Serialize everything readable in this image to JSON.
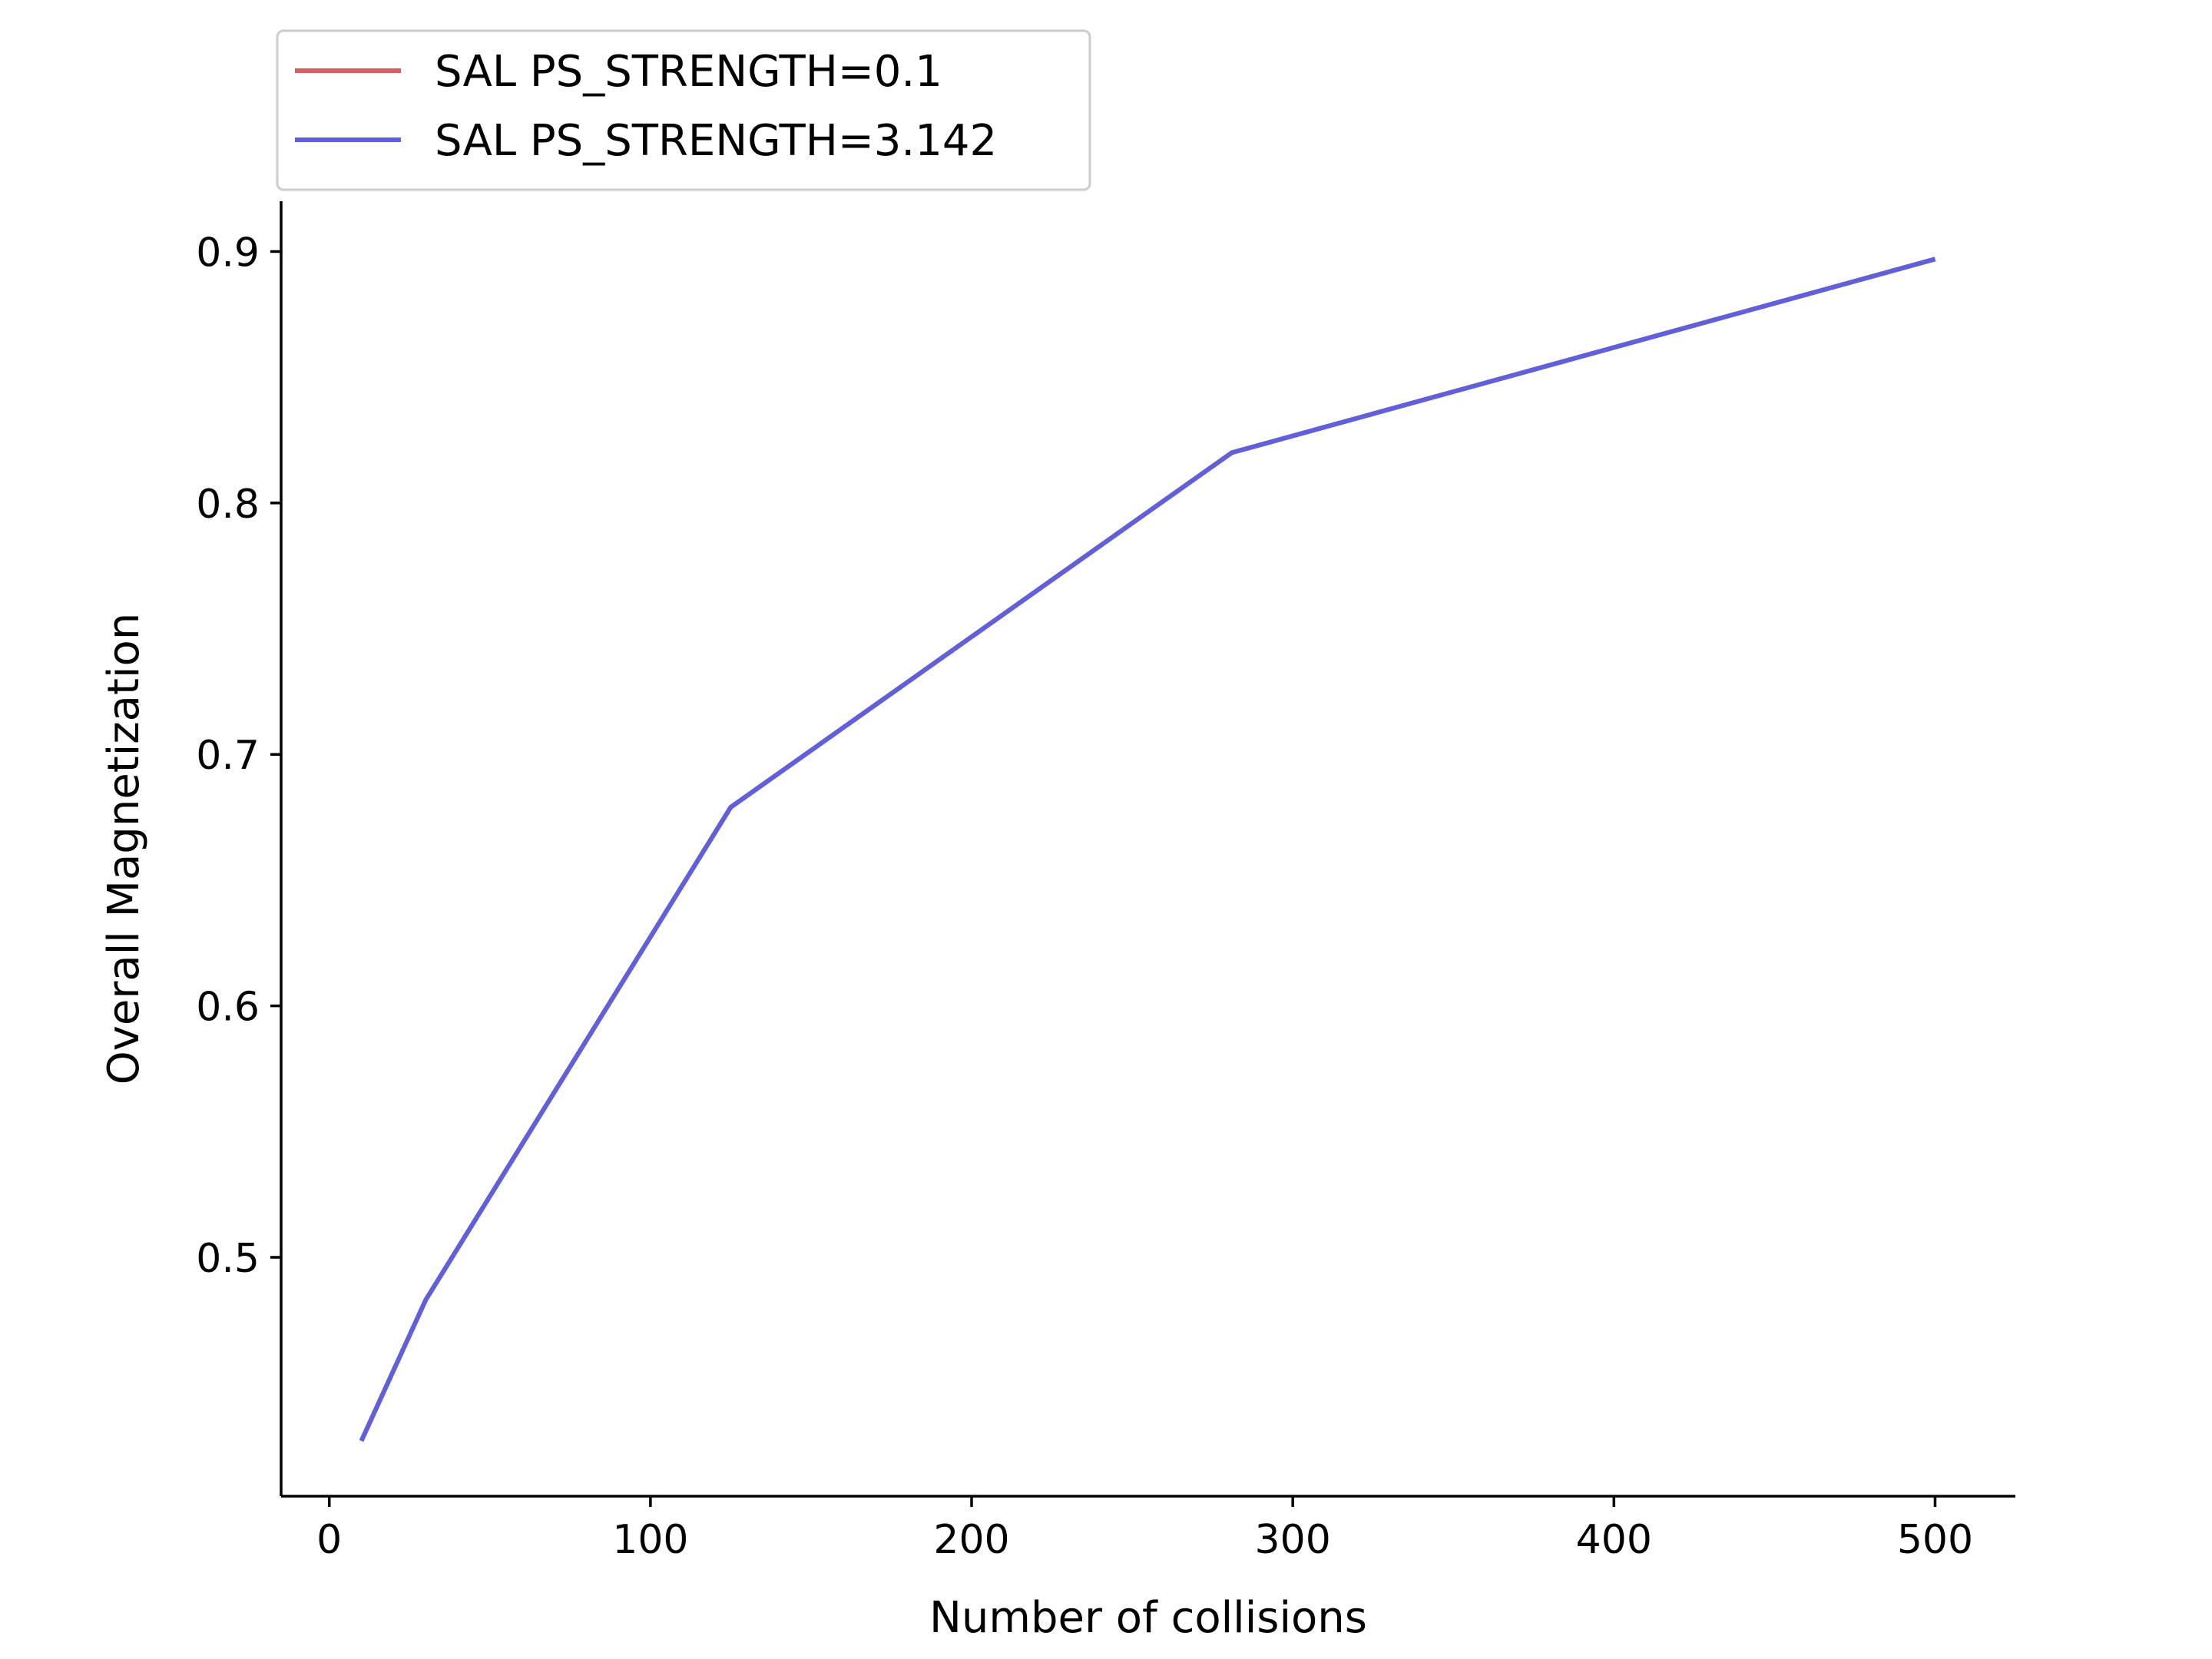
{
  "chart_data": {
    "type": "line",
    "title": "",
    "xlabel": "Number of collisions",
    "ylabel": "Overall Magnetization",
    "xlim": [
      -15,
      525
    ],
    "ylim": [
      0.405,
      0.92
    ],
    "x_ticks": [
      0,
      100,
      200,
      300,
      400,
      500
    ],
    "y_ticks": [
      0.5,
      0.6,
      0.7,
      0.8,
      0.9
    ],
    "x_tick_labels": [
      "0",
      "100",
      "200",
      "300",
      "400",
      "500"
    ],
    "y_tick_labels": [
      "0.5",
      "0.6",
      "0.7",
      "0.8",
      "0.9"
    ],
    "grid": false,
    "legend_position": "above-left",
    "x": [
      10,
      30,
      125,
      281,
      500
    ],
    "series": [
      {
        "name": "SAL PS_STRENGTH=0.1",
        "color": "#d95f5f",
        "values": [
          0.427,
          0.483,
          0.679,
          0.82,
          0.897
        ]
      },
      {
        "name": "SAL PS_STRENGTH=3.142",
        "color": "#6060dc",
        "values": [
          0.427,
          0.483,
          0.679,
          0.82,
          0.897
        ]
      }
    ]
  }
}
